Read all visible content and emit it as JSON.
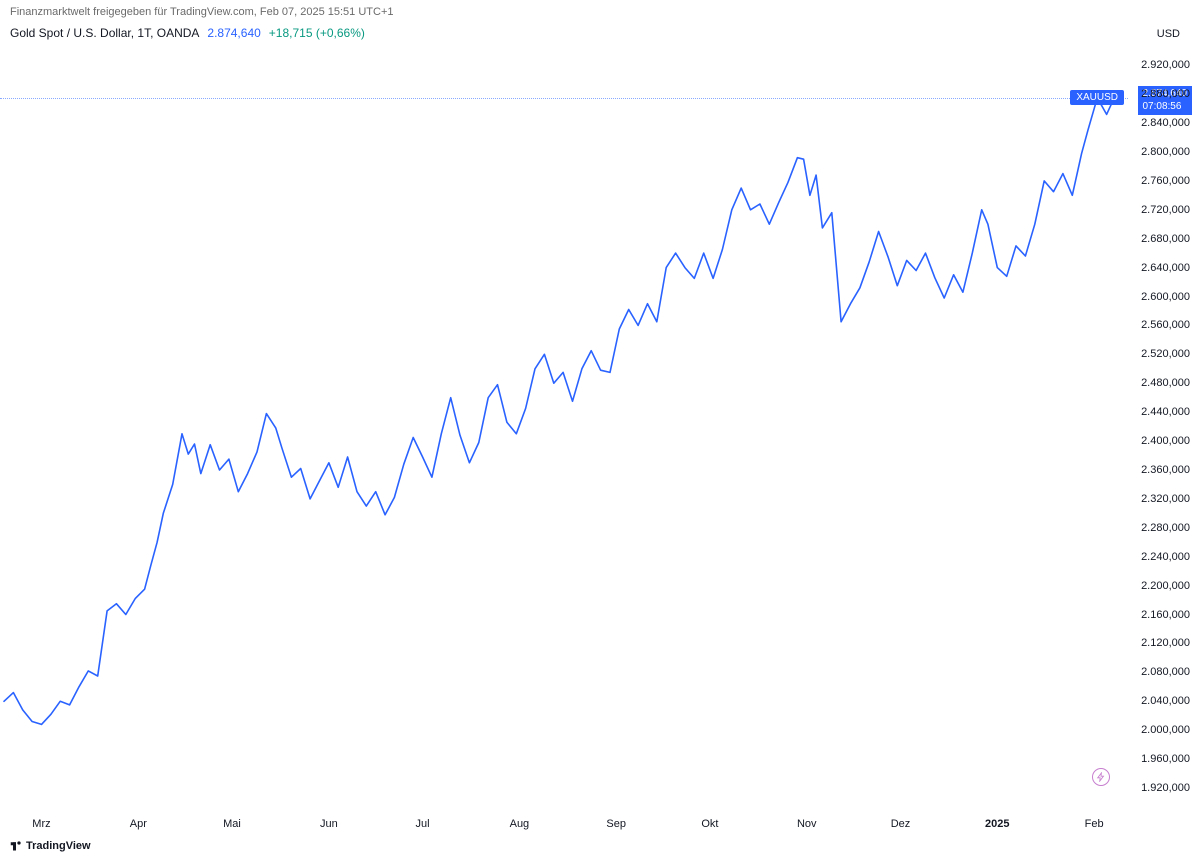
{
  "header": {
    "attribution": "Finanzmarktwelt freigegeben für TradingView.com, Feb 07, 2025 15:51 UTC+1"
  },
  "symbol": {
    "name": "Gold Spot / U.S. Dollar, 1T, OANDA",
    "price": "2.874,640",
    "change": "+18,715 (+0,66%)",
    "currency": "USD",
    "ticker_badge": "XAUUSD",
    "countdown": "07:08:56"
  },
  "chart": {
    "type": "line",
    "line_color": "#2962ff",
    "line_width": 1.6,
    "background_color": "#ffffff",
    "last_price_line_color": "#2962ff",
    "y_axis": {
      "min": 1920,
      "max": 2930,
      "tick_step": 40,
      "ticks": [
        "2.920,000",
        "2.880,000",
        "2.840,000",
        "2.800,000",
        "2.760,000",
        "2.720,000",
        "2.680,000",
        "2.640,000",
        "2.600,000",
        "2.560,000",
        "2.520,000",
        "2.480,000",
        "2.440,000",
        "2.400,000",
        "2.360,000",
        "2.320,000",
        "2.280,000",
        "2.240,000",
        "2.200,000",
        "2.160,000",
        "2.120,000",
        "2.080,000",
        "2.040,000",
        "2.000,000",
        "1.960,000",
        "1.920,000"
      ],
      "tick_values": [
        2920,
        2880,
        2840,
        2800,
        2760,
        2720,
        2680,
        2640,
        2600,
        2560,
        2520,
        2480,
        2440,
        2400,
        2360,
        2320,
        2280,
        2240,
        2200,
        2160,
        2120,
        2080,
        2040,
        2000,
        1960,
        1920
      ]
    },
    "x_axis": {
      "labels": [
        {
          "t": 12,
          "text": "Mrz",
          "bold": false
        },
        {
          "t": 43,
          "text": "Apr",
          "bold": false
        },
        {
          "t": 73,
          "text": "Mai",
          "bold": false
        },
        {
          "t": 104,
          "text": "Jun",
          "bold": false
        },
        {
          "t": 134,
          "text": "Jul",
          "bold": false
        },
        {
          "t": 165,
          "text": "Aug",
          "bold": false
        },
        {
          "t": 196,
          "text": "Sep",
          "bold": false
        },
        {
          "t": 226,
          "text": "Okt",
          "bold": false
        },
        {
          "t": 257,
          "text": "Nov",
          "bold": false
        },
        {
          "t": 287,
          "text": "Dez",
          "bold": false
        },
        {
          "t": 318,
          "text": "2025",
          "bold": true
        },
        {
          "t": 349,
          "text": "Feb",
          "bold": false
        }
      ],
      "t_min": 0,
      "t_max": 356
    },
    "current_price": 2874.64,
    "series": [
      [
        0,
        2040
      ],
      [
        3,
        2052
      ],
      [
        6,
        2028
      ],
      [
        9,
        2012
      ],
      [
        12,
        2008
      ],
      [
        15,
        2022
      ],
      [
        18,
        2040
      ],
      [
        21,
        2035
      ],
      [
        24,
        2060
      ],
      [
        27,
        2082
      ],
      [
        30,
        2075
      ],
      [
        33,
        2165
      ],
      [
        36,
        2175
      ],
      [
        39,
        2160
      ],
      [
        42,
        2182
      ],
      [
        45,
        2195
      ],
      [
        47,
        2228
      ],
      [
        49,
        2260
      ],
      [
        51,
        2300
      ],
      [
        54,
        2340
      ],
      [
        57,
        2410
      ],
      [
        59,
        2382
      ],
      [
        61,
        2396
      ],
      [
        63,
        2355
      ],
      [
        66,
        2395
      ],
      [
        69,
        2360
      ],
      [
        72,
        2375
      ],
      [
        75,
        2330
      ],
      [
        78,
        2355
      ],
      [
        81,
        2385
      ],
      [
        84,
        2438
      ],
      [
        87,
        2418
      ],
      [
        89,
        2390
      ],
      [
        92,
        2350
      ],
      [
        95,
        2362
      ],
      [
        98,
        2320
      ],
      [
        101,
        2345
      ],
      [
        104,
        2370
      ],
      [
        107,
        2336
      ],
      [
        110,
        2378
      ],
      [
        113,
        2330
      ],
      [
        116,
        2310
      ],
      [
        119,
        2330
      ],
      [
        122,
        2298
      ],
      [
        125,
        2322
      ],
      [
        128,
        2368
      ],
      [
        131,
        2405
      ],
      [
        134,
        2378
      ],
      [
        137,
        2350
      ],
      [
        140,
        2410
      ],
      [
        143,
        2460
      ],
      [
        146,
        2408
      ],
      [
        149,
        2370
      ],
      [
        152,
        2398
      ],
      [
        155,
        2460
      ],
      [
        158,
        2478
      ],
      [
        161,
        2426
      ],
      [
        164,
        2410
      ],
      [
        167,
        2445
      ],
      [
        170,
        2500
      ],
      [
        173,
        2520
      ],
      [
        176,
        2480
      ],
      [
        179,
        2495
      ],
      [
        182,
        2455
      ],
      [
        185,
        2500
      ],
      [
        188,
        2525
      ],
      [
        191,
        2498
      ],
      [
        194,
        2495
      ],
      [
        197,
        2555
      ],
      [
        200,
        2582
      ],
      [
        203,
        2560
      ],
      [
        206,
        2590
      ],
      [
        209,
        2565
      ],
      [
        212,
        2640
      ],
      [
        215,
        2660
      ],
      [
        218,
        2640
      ],
      [
        221,
        2625
      ],
      [
        224,
        2660
      ],
      [
        227,
        2625
      ],
      [
        230,
        2665
      ],
      [
        233,
        2720
      ],
      [
        236,
        2750
      ],
      [
        239,
        2720
      ],
      [
        242,
        2728
      ],
      [
        245,
        2700
      ],
      [
        248,
        2730
      ],
      [
        251,
        2758
      ],
      [
        254,
        2792
      ],
      [
        256,
        2790
      ],
      [
        258,
        2740
      ],
      [
        260,
        2768
      ],
      [
        262,
        2695
      ],
      [
        265,
        2716
      ],
      [
        268,
        2565
      ],
      [
        271,
        2590
      ],
      [
        274,
        2612
      ],
      [
        277,
        2648
      ],
      [
        280,
        2690
      ],
      [
        283,
        2655
      ],
      [
        286,
        2615
      ],
      [
        289,
        2650
      ],
      [
        292,
        2636
      ],
      [
        295,
        2660
      ],
      [
        298,
        2626
      ],
      [
        301,
        2598
      ],
      [
        304,
        2630
      ],
      [
        307,
        2606
      ],
      [
        310,
        2660
      ],
      [
        313,
        2720
      ],
      [
        315,
        2700
      ],
      [
        318,
        2640
      ],
      [
        321,
        2628
      ],
      [
        324,
        2670
      ],
      [
        327,
        2656
      ],
      [
        330,
        2700
      ],
      [
        333,
        2760
      ],
      [
        336,
        2745
      ],
      [
        339,
        2770
      ],
      [
        342,
        2740
      ],
      [
        345,
        2798
      ],
      [
        347,
        2830
      ],
      [
        350,
        2875
      ],
      [
        353,
        2852
      ],
      [
        356,
        2880
      ]
    ]
  },
  "watermark": "TradingView"
}
